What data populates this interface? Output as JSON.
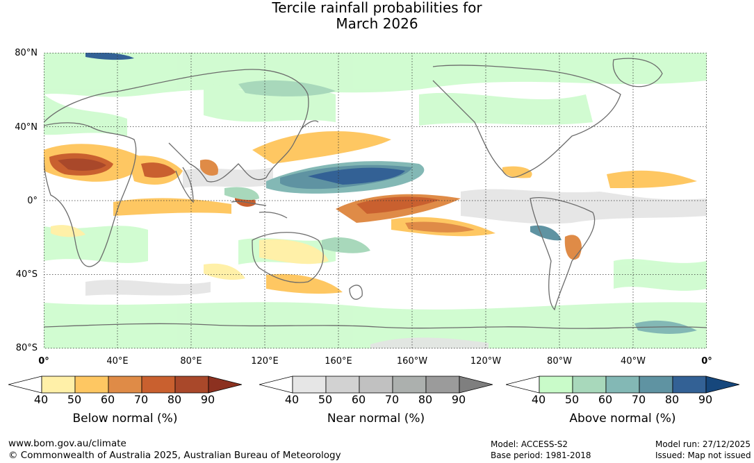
{
  "title": {
    "line1": "Tercile rainfall probabilities for",
    "line2": "March 2026"
  },
  "map": {
    "lat_labels": [
      "80°N",
      "40°N",
      "0°",
      "40°S",
      "80°S"
    ],
    "lon_labels": [
      "0°",
      "40°E",
      "80°E",
      "120°E",
      "160°E",
      "160°W",
      "120°W",
      "80°W",
      "40°W",
      "0°"
    ]
  },
  "colorbars": {
    "below": {
      "title": "Below normal (%)",
      "ticks": [
        "40",
        "50",
        "60",
        "70",
        "80",
        "90"
      ],
      "colors": [
        "#fff0a8",
        "#fec762",
        "#df8b47",
        "#c9602f",
        "#a9482a",
        "#8c3120"
      ],
      "low_color": "#ffffff"
    },
    "near": {
      "title": "Near normal (%)",
      "ticks": [
        "40",
        "50",
        "60",
        "70",
        "80",
        "90"
      ],
      "colors": [
        "#e6e6e6",
        "#d2d2d2",
        "#c1c1c1",
        "#acb0ae",
        "#9b9b9b",
        "#7f7f7f"
      ],
      "low_color": "#ffffff"
    },
    "above": {
      "title": "Above normal (%)",
      "ticks": [
        "40",
        "50",
        "60",
        "70",
        "80",
        "90"
      ],
      "colors": [
        "#c9fbc9",
        "#a8d8bb",
        "#83b8b5",
        "#5f93a2",
        "#336195",
        "#16477c"
      ],
      "low_color": "#ffffff"
    }
  },
  "footer": {
    "website": "www.bom.gov.au/climate",
    "copyright": "© Commonwealth of Australia 2025, Australian Bureau of Meteorology",
    "model": "Model: ACCESS-S2",
    "base_period": "Base period: 1981-2018",
    "model_run": "Model run: 27/12/2025",
    "issued": "Issued: Map not issued"
  }
}
